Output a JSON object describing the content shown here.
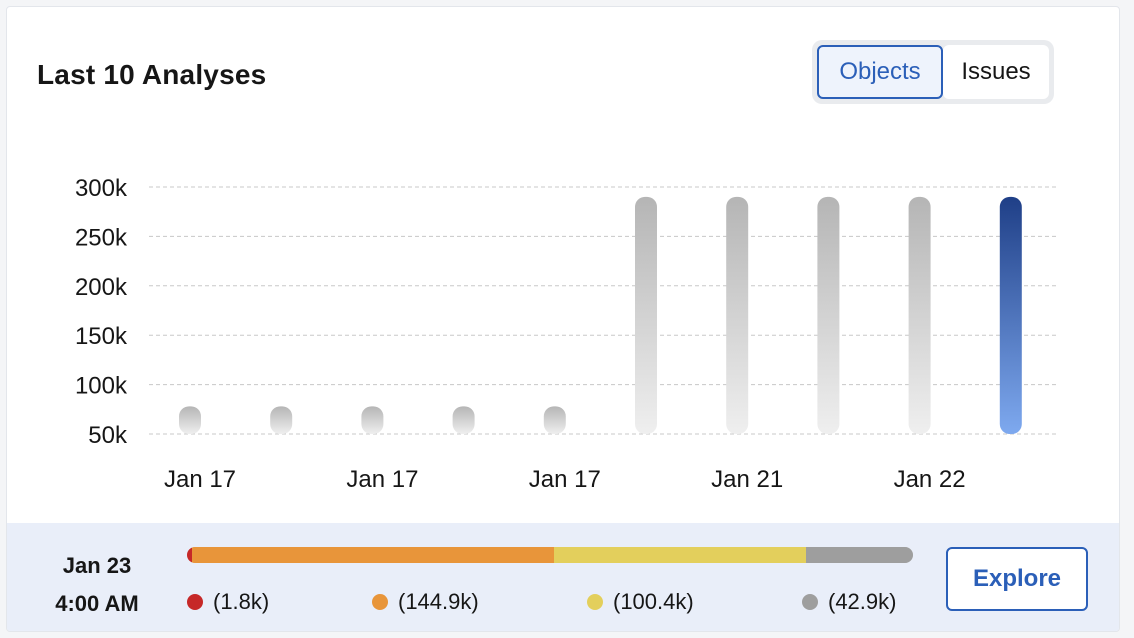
{
  "widget": {
    "title": "Last 10 Analyses",
    "toggle": [
      {
        "label": "Objects",
        "active": true
      },
      {
        "label": "Issues",
        "active": false
      }
    ]
  },
  "chart_data": {
    "type": "bar",
    "title": "",
    "xlabel": "",
    "ylabel": "",
    "y_ticks": [
      "50k",
      "100k",
      "150k",
      "200k",
      "250k",
      "300k"
    ],
    "y_tick_values": [
      50000,
      100000,
      150000,
      200000,
      250000,
      300000
    ],
    "ylim": [
      50000,
      300000
    ],
    "x_tick_labels": [
      "Jan 17",
      "Jan 17",
      "Jan 17",
      "Jan 21",
      "Jan 22"
    ],
    "x_tick_positions": [
      0,
      2,
      4,
      6,
      8
    ],
    "values": [
      78000,
      78000,
      78000,
      78000,
      78000,
      290000,
      290000,
      290000,
      290000,
      290000
    ],
    "selected_index": 9,
    "grid": true,
    "colors": {
      "default_top": "#b5b5b5",
      "default_bottom": "#efefef",
      "selected_top": "#1f3f87",
      "selected_bottom": "#7ea9ef"
    }
  },
  "selection": {
    "date": "Jan 23",
    "time": "4:00 AM",
    "breakdown": [
      {
        "value": 1800,
        "label": "(1.8k)",
        "color": "#c62828"
      },
      {
        "value": 144900,
        "label": "(144.9k)",
        "color": "#e8953a"
      },
      {
        "value": 100400,
        "label": "(100.4k)",
        "color": "#e3cf5c"
      },
      {
        "value": 42900,
        "label": "(42.9k)",
        "color": "#9e9e9e"
      }
    ]
  },
  "explore_label": "Explore"
}
